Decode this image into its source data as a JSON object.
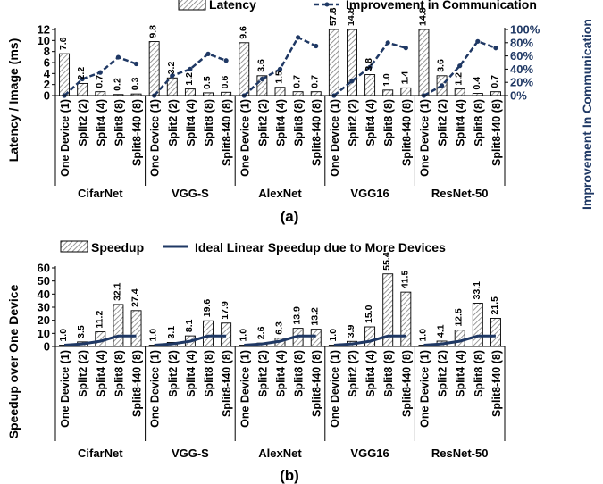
{
  "figure": {
    "label_a": "(a)",
    "label_b": "(b)",
    "colors": {
      "bar_edge": "#000000",
      "bar_hatch": "#7f7f7f",
      "line": "#1f3864"
    }
  },
  "chart_data": [
    {
      "type": "bar",
      "title": "",
      "ylabel": "Latency / Image (ms)",
      "y2label": "Improvement In  Communication",
      "ylim": [
        0,
        12
      ],
      "yticks": [
        0,
        2,
        4,
        6,
        8,
        10,
        12
      ],
      "y2lim": [
        0,
        100
      ],
      "y2ticks": [
        "0%",
        "20%",
        "40%",
        "60%",
        "80%",
        "100%"
      ],
      "legend": {
        "bar": "Latency",
        "line": "Improvement in Communication",
        "position": "top"
      },
      "grid": false,
      "groups": [
        {
          "name": "CifarNet",
          "categories": [
            "One Device (1)",
            "Split2 (2)",
            "Split4 (4)",
            "Split8 (8)",
            "Split8-f40 (8)"
          ],
          "latency": [
            7.6,
            2.2,
            0.7,
            0.2,
            0.3
          ],
          "improvement_pct": [
            0,
            25,
            35,
            58,
            48
          ]
        },
        {
          "name": "VGG-S",
          "categories": [
            "One Device (1)",
            "Split2 (2)",
            "Split4 (4)",
            "Split8 (8)",
            "Split8-f40 (8)"
          ],
          "latency": [
            9.8,
            3.2,
            1.2,
            0.5,
            0.6
          ],
          "improvement_pct": [
            0,
            30,
            40,
            63,
            53
          ]
        },
        {
          "name": "AlexNet",
          "categories": [
            "One Device (1)",
            "Split2 (2)",
            "Split4 (4)",
            "Split8 (8)",
            "Split8-f40 (8)"
          ],
          "latency": [
            9.6,
            3.6,
            1.5,
            0.7,
            0.7
          ],
          "improvement_pct": [
            0,
            25,
            40,
            88,
            75
          ]
        },
        {
          "name": "VGG16",
          "categories": [
            "One Device (1)",
            "Split2 (2)",
            "Split4 (4)",
            "Split8 (8)",
            "Split8-f40 (8)"
          ],
          "latency": [
            57.8,
            14.8,
            3.8,
            1.0,
            1.4
          ],
          "improvement_pct": [
            0,
            22,
            43,
            80,
            72
          ]
        },
        {
          "name": "ResNet-50",
          "categories": [
            "One Device (1)",
            "Split2 (2)",
            "Split4 (4)",
            "Split8 (8)",
            "Split8-f40 (8)"
          ],
          "latency": [
            14.8,
            3.6,
            1.2,
            0.4,
            0.7
          ],
          "improvement_pct": [
            0,
            15,
            45,
            82,
            72
          ]
        }
      ]
    },
    {
      "type": "bar",
      "title": "",
      "ylabel": "Speedup over One Device",
      "ylim": [
        0,
        60
      ],
      "yticks": [
        0,
        10,
        20,
        30,
        40,
        50,
        60
      ],
      "legend": {
        "bar": "Speedup",
        "line": "Ideal Linear Speedup due to More Devices",
        "position": "top"
      },
      "grid": false,
      "groups": [
        {
          "name": "CifarNet",
          "categories": [
            "One Device (1)",
            "Split2 (2)",
            "Split4 (4)",
            "Split8 (8)",
            "Split8-f40 (8)"
          ],
          "speedup": [
            1.0,
            3.5,
            11.2,
            32.1,
            27.4
          ],
          "ideal": [
            1,
            2,
            4,
            8,
            8
          ]
        },
        {
          "name": "VGG-S",
          "categories": [
            "One Device (1)",
            "Split2 (2)",
            "Split4 (4)",
            "Split8 (8)",
            "Split8-f40 (8)"
          ],
          "speedup": [
            1.0,
            3.1,
            8.1,
            19.6,
            17.9
          ],
          "ideal": [
            1,
            2,
            4,
            8,
            8
          ]
        },
        {
          "name": "AlexNet",
          "categories": [
            "One Device (1)",
            "Split2 (2)",
            "Split4 (4)",
            "Split8 (8)",
            "Split8-f40 (8)"
          ],
          "speedup": [
            1.0,
            2.6,
            6.3,
            13.9,
            13.2
          ],
          "ideal": [
            1,
            2,
            4,
            8,
            8
          ]
        },
        {
          "name": "VGG16",
          "categories": [
            "One Device (1)",
            "Split2 (2)",
            "Split4 (4)",
            "Split8 (8)",
            "Split8-f40 (8)"
          ],
          "speedup": [
            1.0,
            3.9,
            15.0,
            55.4,
            41.5
          ],
          "ideal": [
            1,
            2,
            4,
            8,
            8
          ]
        },
        {
          "name": "ResNet-50",
          "categories": [
            "One Device (1)",
            "Split2 (2)",
            "Split4 (4)",
            "Split8 (8)",
            "Split8-f40 (8)"
          ],
          "speedup": [
            1.0,
            4.1,
            12.5,
            33.1,
            21.5
          ],
          "ideal": [
            1,
            2,
            4,
            8,
            8
          ]
        }
      ]
    }
  ]
}
